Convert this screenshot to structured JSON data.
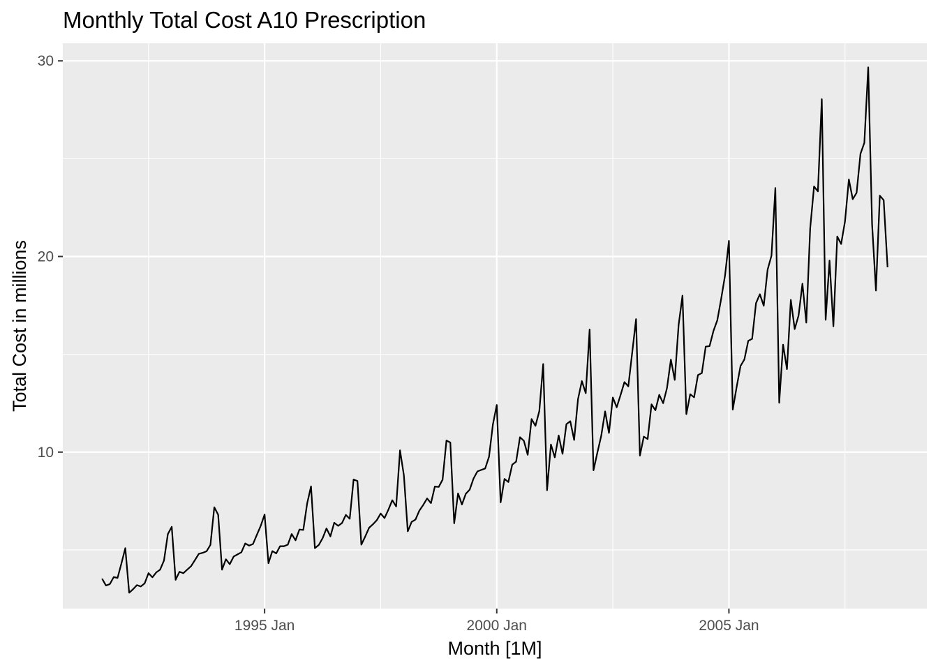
{
  "chart_data": {
    "type": "line",
    "title": "Monthly Total Cost A10 Prescription",
    "xlabel": "Month [1M]",
    "ylabel": "Total Cost in millions",
    "x_start": "1991 Jul",
    "x_frequency": "monthly",
    "x_ticks": [
      "1995 Jan",
      "2000 Jan",
      "2005 Jan"
    ],
    "y_ticks": [
      10,
      20,
      30
    ],
    "ylim": [
      2.0,
      30.9
    ],
    "grid": true,
    "colors": {
      "panel": "#ebebeb",
      "grid": "#ffffff",
      "line": "#000000",
      "tick_text": "#4d4d4d"
    },
    "series": [
      {
        "values": [
          3.53,
          3.18,
          3.25,
          3.61,
          3.57,
          4.31,
          5.09,
          2.81,
          2.99,
          3.2,
          3.13,
          3.29,
          3.81,
          3.6,
          3.85,
          3.99,
          4.46,
          5.81,
          6.18,
          3.47,
          3.88,
          3.81,
          3.99,
          4.17,
          4.48,
          4.8,
          4.85,
          4.93,
          5.26,
          7.18,
          6.8,
          3.99,
          4.52,
          4.27,
          4.66,
          4.77,
          4.88,
          5.33,
          5.22,
          5.3,
          5.77,
          6.23,
          6.81,
          4.32,
          4.94,
          4.82,
          5.19,
          5.19,
          5.27,
          5.81,
          5.49,
          6.04,
          6.02,
          7.38,
          8.25,
          5.09,
          5.25,
          5.6,
          6.1,
          5.69,
          6.39,
          6.23,
          6.37,
          6.79,
          6.59,
          8.6,
          8.52,
          5.27,
          5.68,
          6.13,
          6.31,
          6.52,
          6.86,
          6.63,
          7.06,
          7.54,
          7.22,
          10.09,
          8.81,
          5.95,
          6.43,
          6.55,
          7.01,
          7.3,
          7.63,
          7.39,
          8.24,
          8.22,
          8.59,
          10.59,
          10.49,
          6.36,
          7.89,
          7.32,
          7.87,
          8.08,
          8.65,
          9.01,
          9.09,
          9.16,
          9.76,
          11.41,
          12.41,
          7.43,
          8.63,
          8.47,
          9.36,
          9.51,
          10.76,
          10.58,
          9.86,
          11.69,
          11.34,
          12.1,
          14.5,
          8.05,
          10.39,
          9.73,
          10.85,
          9.91,
          11.43,
          11.58,
          10.62,
          12.71,
          13.63,
          13.01,
          16.27,
          9.07,
          9.97,
          10.83,
          12.08,
          10.98,
          12.79,
          12.29,
          12.92,
          13.58,
          13.36,
          15.08,
          16.8,
          9.82,
          10.79,
          10.67,
          12.44,
          12.14,
          12.93,
          12.5,
          13.28,
          14.73,
          13.69,
          16.5,
          18.0,
          11.94,
          12.96,
          12.8,
          13.94,
          14.04,
          15.39,
          15.42,
          16.19,
          16.74,
          17.84,
          19.03,
          20.8,
          12.17,
          13.33,
          14.4,
          14.74,
          15.69,
          15.79,
          17.61,
          18.07,
          17.48,
          19.33,
          20.04,
          23.5,
          12.52,
          15.49,
          14.24,
          17.78,
          16.29,
          16.98,
          18.61,
          16.62,
          21.43,
          23.58,
          23.33,
          28.04,
          16.76,
          19.79,
          16.43,
          21.02,
          20.64,
          21.79,
          23.94,
          22.93,
          23.26,
          25.25,
          25.81,
          29.67,
          21.65,
          18.26,
          23.11,
          22.88,
          19.45
        ]
      }
    ]
  }
}
